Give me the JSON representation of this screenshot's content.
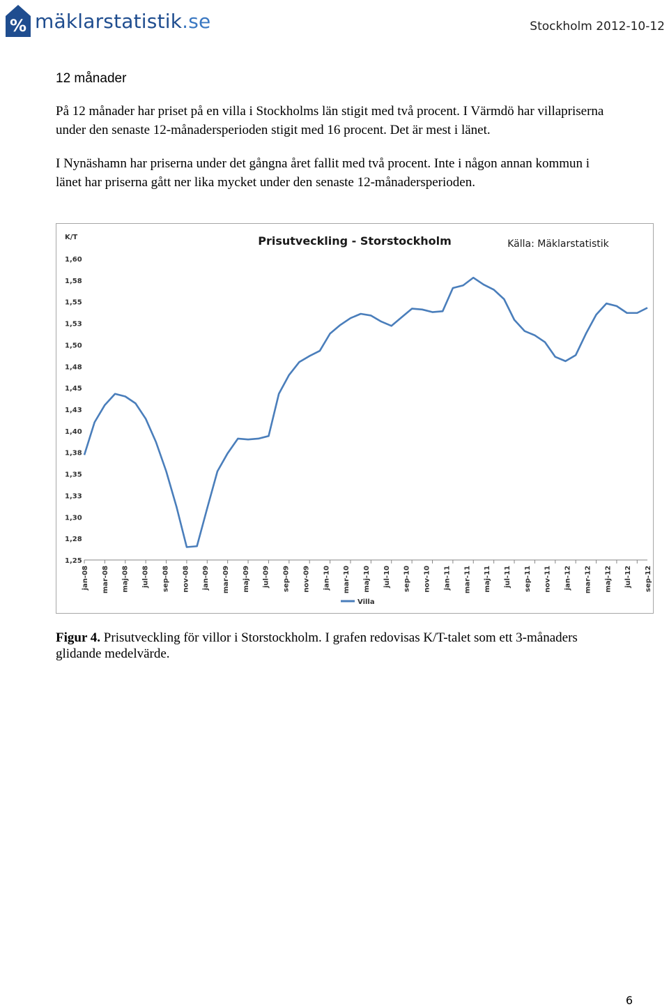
{
  "header": {
    "logo_prefix": "%",
    "logo_name": "mäklarstatistik",
    "logo_tld": ".se",
    "date_line": "Stockholm 2012-10-12"
  },
  "section_title": "12 månader",
  "paragraphs": [
    "På 12 månader har priset på en villa i Stockholms län stigit med två procent. I Värmdö har villapriserna under den senaste 12-månadersperioden stigit med 16 procent. Det är mest i länet.",
    "I Nynäshamn har priserna under det gångna året fallit med två procent. Inte i någon annan kommun i länet har priserna gått ner lika mycket under den senaste 12-månadersperioden."
  ],
  "caption": {
    "label": "Figur 4.",
    "text": " Prisutveckling för villor i Storstockholm. I grafen redovisas K/T-talet som ett 3-månaders glidande medelvärde."
  },
  "page_number": "6",
  "colors": {
    "line": "#4a7ebb",
    "logo_blue": "#1f4d8f",
    "axis": "#868686"
  },
  "chart_data": {
    "type": "line",
    "title": "Prisutveckling - Storstockholm",
    "source": "Källa: Mäklarstatistik",
    "ylabel": "K/T",
    "ylim": [
      1.25,
      1.6
    ],
    "y_ticks": [
      "1,25",
      "1,28",
      "1,30",
      "1,33",
      "1,35",
      "1,38",
      "1,40",
      "1,43",
      "1,45",
      "1,48",
      "1,50",
      "1,53",
      "1,55",
      "1,58",
      "1,60"
    ],
    "x_tick_labels": [
      "jan-08",
      "mar-08",
      "maj-08",
      "jul-08",
      "sep-08",
      "nov-08",
      "jan-09",
      "mar-09",
      "maj-09",
      "jul-09",
      "sep-09",
      "nov-09",
      "jan-10",
      "mar-10",
      "maj-10",
      "jul-10",
      "sep-10",
      "nov-10",
      "jan-11",
      "mar-11",
      "maj-11",
      "jul-11",
      "sep-11",
      "nov-11",
      "jan-12",
      "mar-12",
      "maj-12",
      "jul-12",
      "sep-12"
    ],
    "legend": "bottom",
    "grid": false,
    "series": [
      {
        "name": "Villa",
        "values": [
          1.372,
          1.41,
          1.43,
          1.443,
          1.44,
          1.432,
          1.414,
          1.387,
          1.353,
          1.312,
          1.265,
          1.266,
          1.31,
          1.353,
          1.374,
          1.391,
          1.39,
          1.391,
          1.394,
          1.443,
          1.465,
          1.48,
          1.487,
          1.493,
          1.513,
          1.523,
          1.531,
          1.536,
          1.534,
          1.527,
          1.522,
          1.532,
          1.542,
          1.541,
          1.538,
          1.539,
          1.566,
          1.569,
          1.578,
          1.57,
          1.564,
          1.553,
          1.529,
          1.516,
          1.511,
          1.503,
          1.486,
          1.481,
          1.488,
          1.513,
          1.535,
          1.548,
          1.545,
          1.537,
          1.537,
          1.543
        ]
      }
    ]
  }
}
